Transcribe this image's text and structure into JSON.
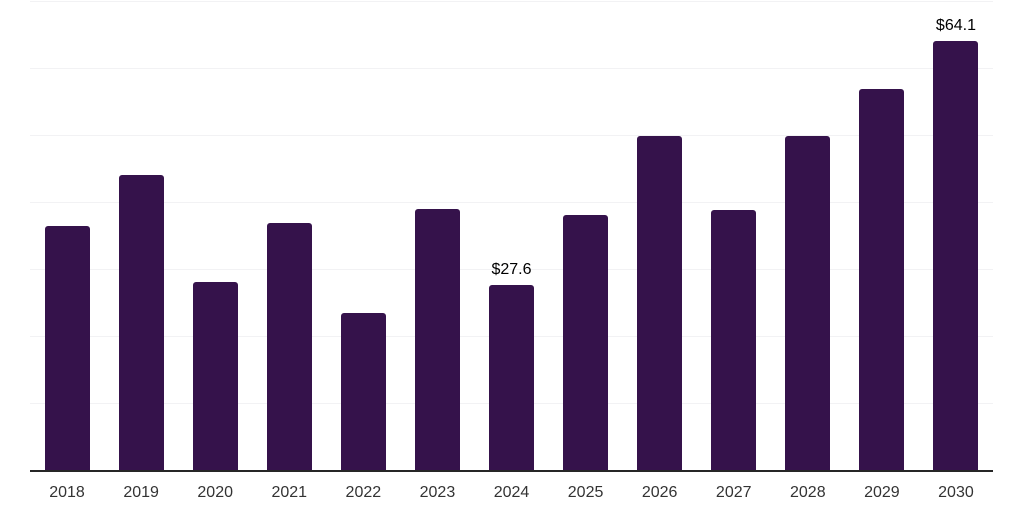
{
  "chart_data": {
    "type": "bar",
    "title": "",
    "xlabel": "",
    "ylabel": "",
    "categories": [
      "2018",
      "2019",
      "2020",
      "2021",
      "2022",
      "2023",
      "2024",
      "2025",
      "2026",
      "2027",
      "2028",
      "2029",
      "2030"
    ],
    "values": [
      36.4,
      44.0,
      28.0,
      36.9,
      23.4,
      39.0,
      27.6,
      38.0,
      49.8,
      38.8,
      49.8,
      56.8,
      64.1
    ],
    "annotations": [
      {
        "category": "2024",
        "text": "$27.6"
      },
      {
        "category": "2030",
        "text": "$64.1"
      }
    ],
    "ylim": [
      0,
      70
    ],
    "gridline_interval": 10,
    "grid": true,
    "y_axis_tick_labels_visible": false,
    "legend": "none",
    "colors": {
      "bar": "#35124b",
      "gridline": "#f2f2f4",
      "axis_line": "#262626",
      "tick_label": "#333333",
      "data_label": "#000000",
      "background": "#ffffff"
    }
  }
}
